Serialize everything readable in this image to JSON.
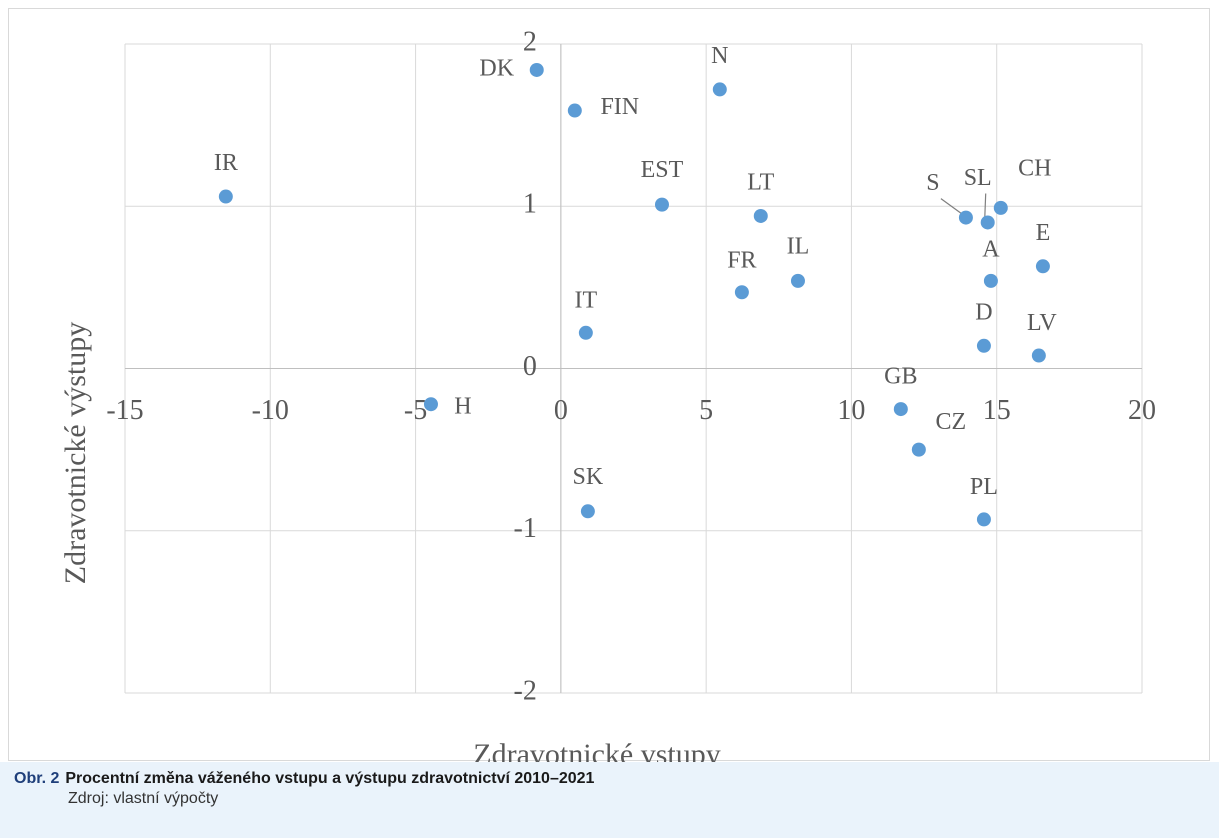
{
  "chart_data": {
    "type": "scatter",
    "x_label": "Zdravotnické vstupy",
    "y_label": "Zdravotnické výstupy",
    "labels": [
      "IR",
      "DK",
      "FIN",
      "N",
      "EST",
      "LT",
      "FR",
      "IL",
      "IT",
      "H",
      "SK",
      "S",
      "SL",
      "CH",
      "A",
      "E",
      "D",
      "LV",
      "GB",
      "CZ",
      "PL"
    ],
    "series": [
      {
        "color": "#5b9bd5",
        "x": [
          -11.53,
          -0.83,
          0.48,
          5.47,
          3.48,
          6.88,
          6.23,
          8.16,
          0.86,
          -4.47,
          0.93,
          13.94,
          14.69,
          15.14,
          14.8,
          16.59,
          14.56,
          16.45,
          11.7,
          12.32,
          14.56
        ],
        "values": [
          1.06,
          1.84,
          1.59,
          1.72,
          1.01,
          0.94,
          0.47,
          0.54,
          0.22,
          -0.22,
          -0.88,
          0.93,
          0.9,
          0.99,
          0.54,
          0.63,
          0.14,
          0.08,
          -0.25,
          -0.5,
          -0.93
        ]
      }
    ],
    "xlim": [
      -15,
      20
    ],
    "xticks": [
      -15,
      -10,
      -5,
      0,
      5,
      10,
      15,
      20
    ],
    "ylim": [
      -2,
      2
    ],
    "yticks": [
      -2,
      -1,
      0,
      1,
      2
    ],
    "grid": true
  },
  "caption": {
    "number": "Obr. 2",
    "title": "Procentní změna váženého vstupu a výstupu zdravotnictví 2010–2021",
    "source": "Zdroj: vlastní výpočty"
  }
}
